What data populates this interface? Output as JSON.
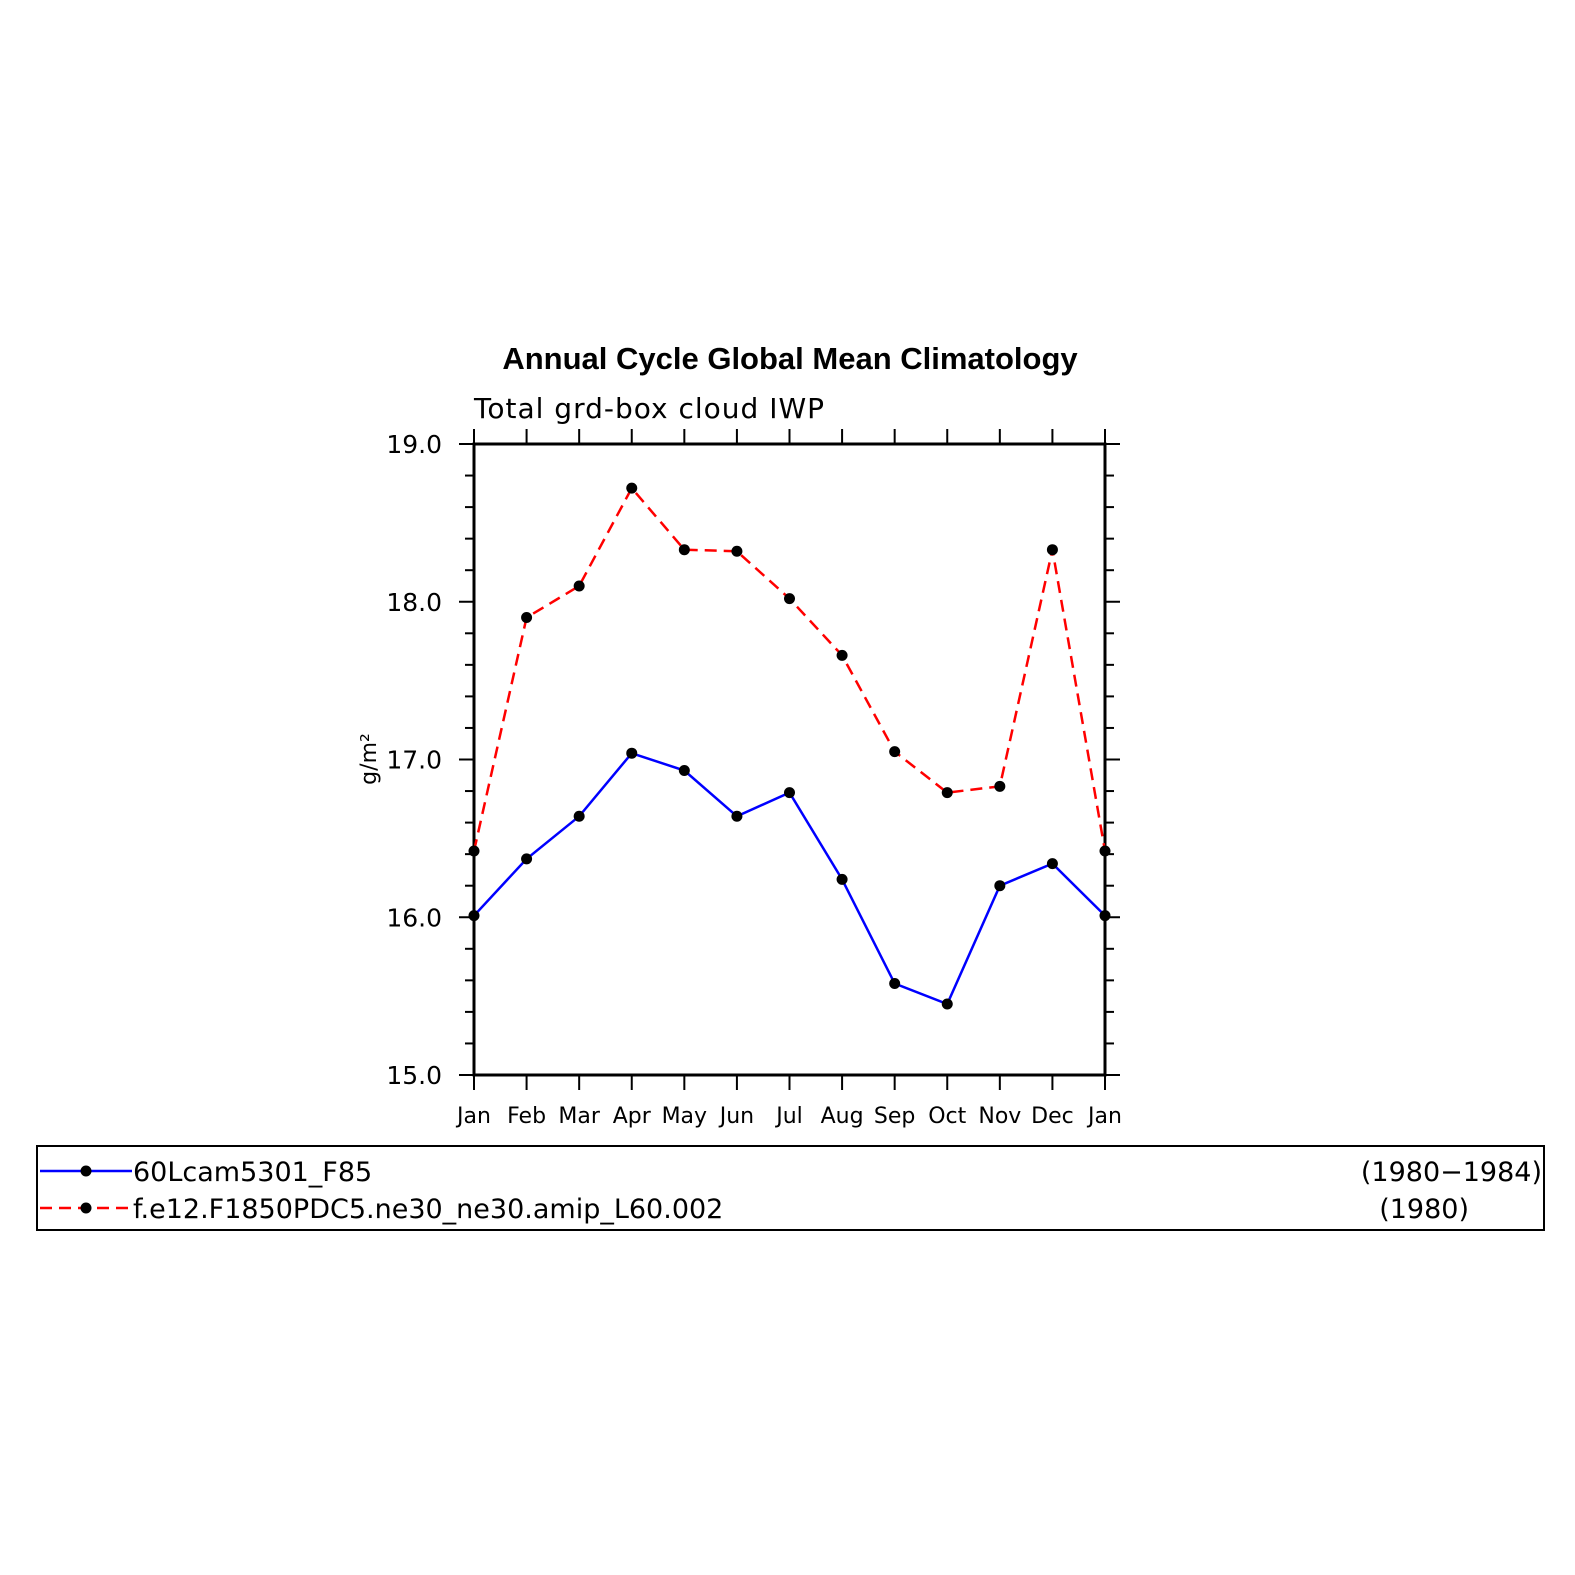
{
  "chart_data": {
    "type": "line",
    "title": "Annual Cycle Global Mean Climatology",
    "subtitle": "Total grd-box cloud IWP",
    "ylabel": "g/m²",
    "xlabel": "",
    "categories": [
      "Jan",
      "Feb",
      "Mar",
      "Apr",
      "May",
      "Jun",
      "Jul",
      "Aug",
      "Sep",
      "Oct",
      "Nov",
      "Dec",
      "Jan"
    ],
    "ylim": [
      15.0,
      19.0
    ],
    "yticks": [
      "15.0",
      "16.0",
      "17.0",
      "18.0",
      "19.0"
    ],
    "grid": false,
    "legend_position": "bottom",
    "series": [
      {
        "name": "60Lcam5301_F85",
        "period": "(1980−1984)",
        "color": "#0000ff",
        "line_style": "solid",
        "marker": "dot",
        "values": [
          16.01,
          16.37,
          16.64,
          17.04,
          16.93,
          16.64,
          16.79,
          16.24,
          15.58,
          15.45,
          16.2,
          16.34,
          16.01
        ]
      },
      {
        "name": "f.e12.F1850PDC5.ne30_ne30.amip_L60.002",
        "period": "(1980)",
        "color": "#ff0000",
        "line_style": "dashed",
        "marker": "dot",
        "values": [
          16.42,
          17.9,
          18.1,
          18.72,
          18.33,
          18.32,
          18.02,
          17.66,
          17.05,
          16.79,
          16.83,
          18.33,
          16.42
        ]
      }
    ]
  }
}
